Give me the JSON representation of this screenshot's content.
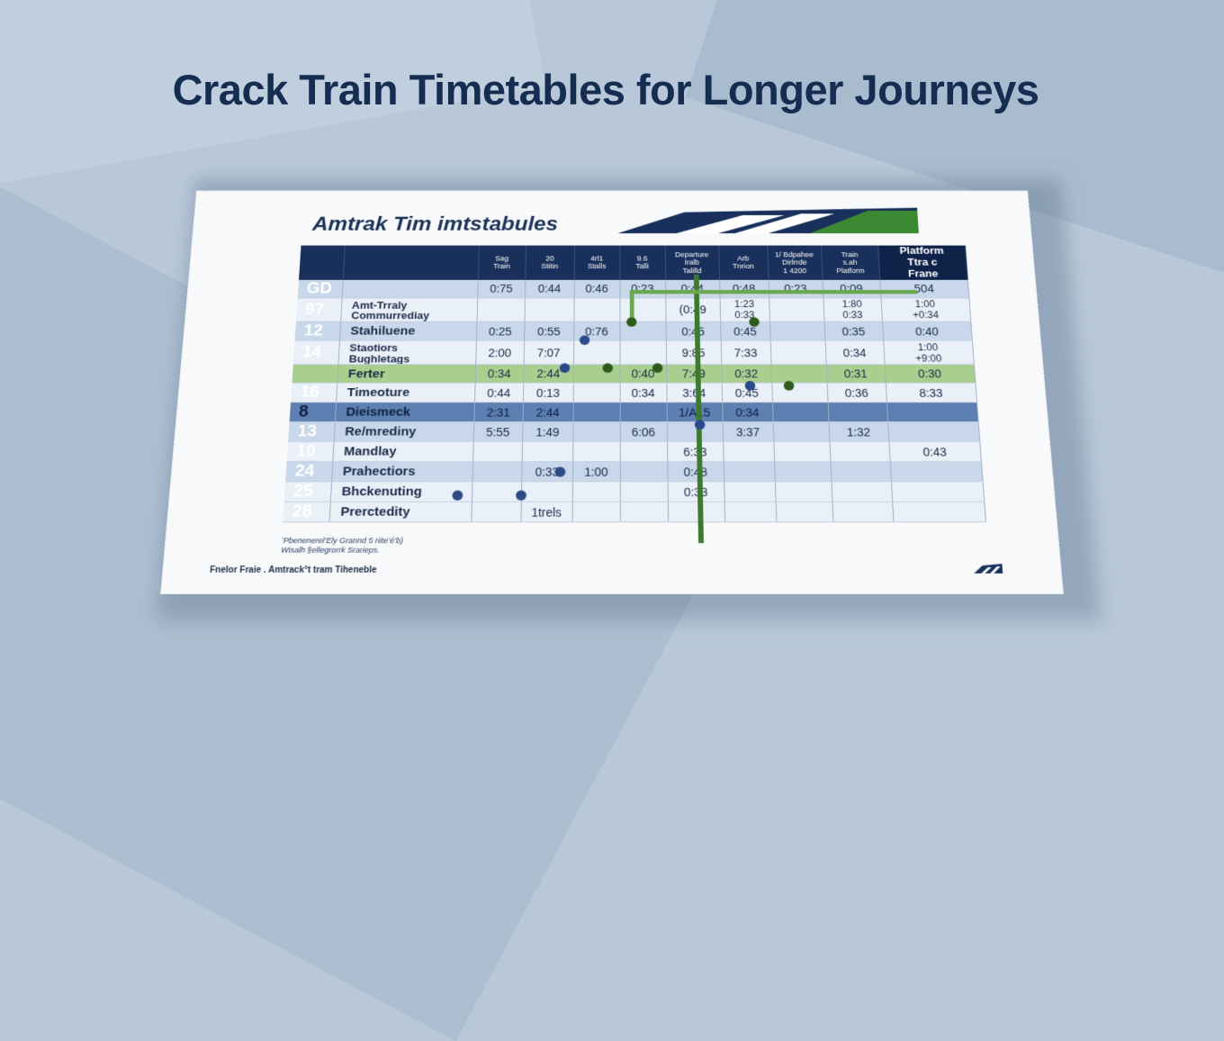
{
  "headline": "Crack Train Timetables for Longer Journeys",
  "document": {
    "title": "Amtrak Tim imtstabules",
    "footer_left": "Fnelor Fraie . Amtrack°t tram Tiheneble",
    "footnote_lines": [
      "’Pbenenerel’Ely Grannd 5 riite’é’b)",
      "Wisalh §ellegrorrk Srarieps."
    ]
  },
  "table": {
    "headers": [
      "",
      "",
      "Sag\nTrain",
      "20\nStitin",
      "4rl1\nStalls",
      "9.6\nTalli",
      "Departure\nIralb\nTalilld",
      "Arb\nTnrion",
      "1/ Bdpahee\nDirlrrde\n1 4200",
      "Train\ns.ah\nPlatform",
      "Platform\nTtra c\nFrane"
    ],
    "rows": [
      {
        "num": "GD",
        "name": "",
        "cells": [
          "0:75",
          "0:44",
          "0:46",
          "0:23",
          "0:44",
          "0:48",
          "0:23",
          "0:09",
          "504"
        ],
        "style": "r-blue"
      },
      {
        "num": "97",
        "name": "Amt-Trraly\nCommurrediay",
        "cells": [
          "",
          "",
          "",
          "",
          "(0:49",
          "1:23\n0:33",
          "",
          "1:80\n0:33",
          "1:00\n+0:34"
        ],
        "style": "r-light"
      },
      {
        "num": "12",
        "name": "Stahiluene",
        "cells": [
          "0:25",
          "0:55",
          "0:76",
          "",
          "0:45",
          "0:45",
          "",
          "0:35",
          "0:40"
        ],
        "style": "r-blue"
      },
      {
        "num": "14",
        "name": "Staotiors\nBughletags",
        "cells": [
          "2:00",
          "7:07",
          "",
          "",
          "9:85",
          "7:33",
          "",
          "0:34",
          "1:00\n+9:00"
        ],
        "style": "r-light"
      },
      {
        "num": "",
        "name": "Ferter",
        "cells": [
          "0:34",
          "2:44",
          "",
          "0:40",
          "7:49",
          "0:32",
          "",
          "0:31",
          "0:30"
        ],
        "style": "r-green"
      },
      {
        "num": "16",
        "name": "Timeoture",
        "cells": [
          "0:44",
          "0:13",
          "",
          "0:34",
          "3:64",
          "0:45",
          "",
          "0:36",
          "8:33"
        ],
        "style": "r-light"
      },
      {
        "num": "8",
        "name": "Dieismeck",
        "cells": [
          "2:31",
          "2:44",
          "",
          "",
          "1/A15",
          "0:34",
          "",
          "",
          ""
        ],
        "style": "r-dark"
      },
      {
        "num": "13",
        "name": "Re/mrediny",
        "cells": [
          "5:55",
          "1:49",
          "",
          "6:06",
          "",
          "3:37",
          "",
          "1:32",
          ""
        ],
        "style": "r-blue"
      },
      {
        "num": "10",
        "name": "Mandlay",
        "cells": [
          "",
          "",
          "",
          "",
          "6:33",
          "",
          "",
          "",
          "0:43"
        ],
        "style": "r-light"
      },
      {
        "num": "24",
        "name": "Prahectiors",
        "cells": [
          "",
          "0:33",
          "1:00",
          "",
          "0:48",
          "",
          "",
          "",
          ""
        ],
        "style": "r-blue"
      },
      {
        "num": "25",
        "name": "Bhckenuting",
        "cells": [
          "",
          "",
          "",
          "",
          "0:33",
          "",
          "",
          "",
          ""
        ],
        "style": "r-light"
      },
      {
        "num": "28",
        "name": "Prerctedity",
        "cells": [
          "",
          "1trels",
          "",
          "",
          "",
          "",
          "",
          "",
          ""
        ],
        "style": "r-light"
      }
    ]
  },
  "colors": {
    "navy": "#18305b",
    "green": "#6aa84f",
    "dark_green": "#3e7a2e",
    "background": "#b8c8d8"
  }
}
